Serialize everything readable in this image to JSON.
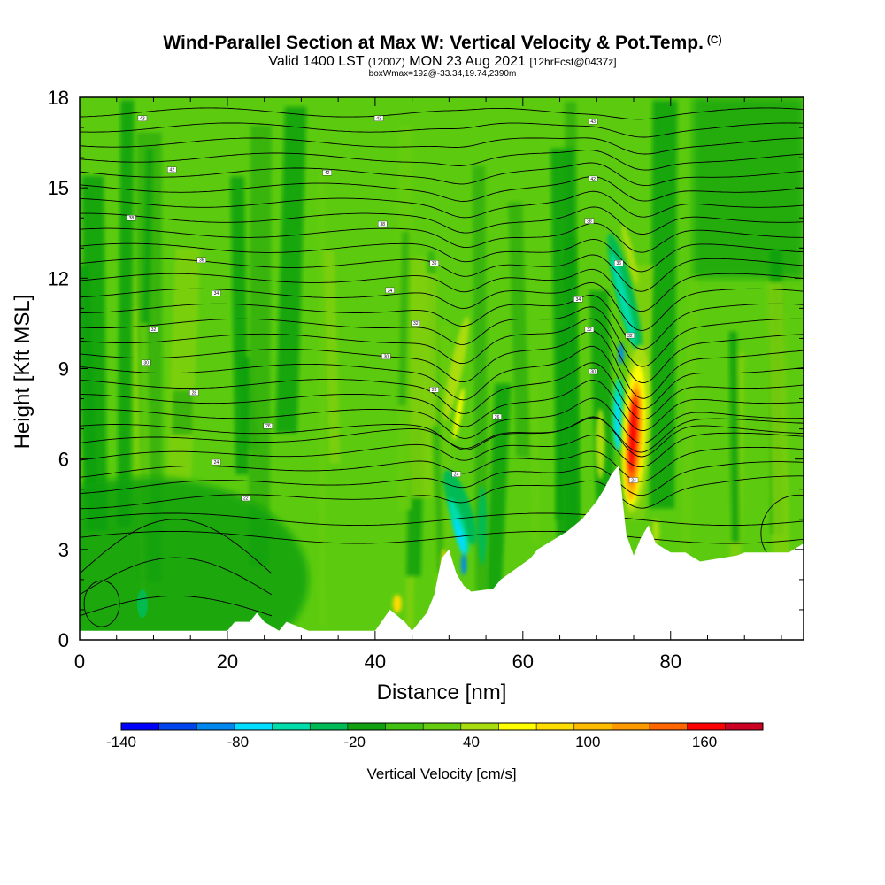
{
  "header": {
    "title": "Wind-Parallel Section at Max W: Vertical Velocity & Pot.Temp.",
    "copyright": "(C)",
    "valid_prefix": "Valid 1400 LST",
    "valid_z": "(1200Z)",
    "valid_date": "MON 23 Aug 2021",
    "forecast_info": "[12hrFcst@0437z]",
    "box_info": "boxWmax=192@-33.34,19.74,2390m"
  },
  "chart_data": {
    "type": "heatmap",
    "xlabel": "Distance [nm]",
    "ylabel": "Height [Kft MSL]",
    "xlim": [
      0,
      98
    ],
    "ylim": [
      0,
      18
    ],
    "x_ticks": [
      "0",
      "20",
      "40",
      "60",
      "80"
    ],
    "x_tick_values": [
      0,
      20,
      40,
      60,
      80
    ],
    "y_ticks": [
      "0",
      "3",
      "6",
      "9",
      "12",
      "15",
      "18"
    ],
    "y_tick_values": [
      0,
      3,
      6,
      9,
      12,
      15,
      18
    ],
    "colorbar": {
      "title": "Vertical Velocity [cm/s]",
      "tick_labels": [
        "-140",
        "-80",
        "-20",
        "40",
        "100",
        "160"
      ],
      "tick_values": [
        -140,
        -80,
        -20,
        40,
        100,
        160
      ],
      "range": [
        -140,
        190
      ],
      "colors": [
        "#0000ff",
        "#0044ee",
        "#0088ee",
        "#00ddff",
        "#00ddaa",
        "#00bb55",
        "#10a010",
        "#40c010",
        "#66cc10",
        "#aadd10",
        "#ffff00",
        "#ffdd00",
        "#ffbb00",
        "#ff9900",
        "#ff6600",
        "#ff0000",
        "#cc0022"
      ]
    },
    "features": [
      {
        "name": "downdraft",
        "x": 51.5,
        "y_range": [
          2.5,
          5.5
        ],
        "min_w": -100
      },
      {
        "name": "downdraft",
        "x": 73,
        "y_range": [
          5.8,
          13.5
        ],
        "min_w": -80
      },
      {
        "name": "updraft",
        "x": 75.2,
        "y_range": [
          3.5,
          9.5
        ],
        "max_w": 192
      },
      {
        "name": "updraft",
        "x": 51,
        "y_range": [
          6.5,
          11
        ],
        "max_w": 40
      }
    ],
    "terrain_kft": [
      [
        0,
        0.3
      ],
      [
        20,
        0.3
      ],
      [
        21,
        0.6
      ],
      [
        23,
        0.6
      ],
      [
        24,
        0.9
      ],
      [
        25,
        0.6
      ],
      [
        27,
        0.3
      ],
      [
        28,
        0.6
      ],
      [
        31,
        0.3
      ],
      [
        40,
        0.3
      ],
      [
        42,
        1.0
      ],
      [
        44,
        0.6
      ],
      [
        45,
        0.3
      ],
      [
        47,
        0.9
      ],
      [
        48,
        1.5
      ],
      [
        49,
        2.7
      ],
      [
        50,
        3.0
      ],
      [
        51,
        2.2
      ],
      [
        52,
        1.8
      ],
      [
        53,
        1.6
      ],
      [
        56,
        1.7
      ],
      [
        57,
        2.0
      ],
      [
        61,
        2.7
      ],
      [
        62,
        3.0
      ],
      [
        64,
        3.3
      ],
      [
        66,
        3.6
      ],
      [
        68,
        4.0
      ],
      [
        70,
        4.6
      ],
      [
        71,
        5.0
      ],
      [
        72,
        5.5
      ],
      [
        73,
        5.8
      ],
      [
        74,
        3.5
      ],
      [
        75,
        2.8
      ],
      [
        76,
        3.4
      ],
      [
        77,
        3.8
      ],
      [
        78,
        3.2
      ],
      [
        80,
        2.9
      ],
      [
        82,
        2.9
      ],
      [
        84,
        2.6
      ],
      [
        89,
        2.8
      ],
      [
        90,
        2.9
      ],
      [
        93,
        2.9
      ],
      [
        96,
        2.9
      ],
      [
        98,
        3.2
      ]
    ],
    "theta_isolines_kft": [
      0.8,
      1.5,
      2.2,
      3.4,
      4.0,
      4.5,
      5.0,
      5.5,
      6.0,
      6.5,
      7.0,
      7.5,
      8.0,
      8.5,
      9.0,
      9.5,
      10.0,
      10.5,
      11.0,
      11.5,
      12.0,
      12.5,
      13.0,
      13.5,
      14.0,
      14.5,
      15.0,
      15.5,
      16.0,
      16.5,
      17.0,
      17.5
    ],
    "theta_labels": [
      {
        "text": "43",
        "x": 8.5,
        "y": 17.3
      },
      {
        "text": "43",
        "x": 40.5,
        "y": 17.3
      },
      {
        "text": "43",
        "x": 69.5,
        "y": 17.2
      },
      {
        "text": "42",
        "x": 12.5,
        "y": 15.6
      },
      {
        "text": "42",
        "x": 33.5,
        "y": 15.5
      },
      {
        "text": "42",
        "x": 69.5,
        "y": 15.3
      },
      {
        "text": "38",
        "x": 7,
        "y": 14.0
      },
      {
        "text": "38",
        "x": 41,
        "y": 13.8
      },
      {
        "text": "38",
        "x": 69,
        "y": 13.9
      },
      {
        "text": "36",
        "x": 16.5,
        "y": 12.6
      },
      {
        "text": "36",
        "x": 48,
        "y": 12.5
      },
      {
        "text": "36",
        "x": 73,
        "y": 12.5
      },
      {
        "text": "34",
        "x": 18.5,
        "y": 11.5
      },
      {
        "text": "34",
        "x": 42,
        "y": 11.6
      },
      {
        "text": "34",
        "x": 67.5,
        "y": 11.3
      },
      {
        "text": "32",
        "x": 10,
        "y": 10.3
      },
      {
        "text": "32",
        "x": 45.5,
        "y": 10.5
      },
      {
        "text": "32",
        "x": 69,
        "y": 10.3
      },
      {
        "text": "32",
        "x": 74.5,
        "y": 10.1
      },
      {
        "text": "30",
        "x": 9,
        "y": 9.2
      },
      {
        "text": "30",
        "x": 41.5,
        "y": 9.4
      },
      {
        "text": "30",
        "x": 69.5,
        "y": 8.9
      },
      {
        "text": "28",
        "x": 15.5,
        "y": 8.2
      },
      {
        "text": "28",
        "x": 48,
        "y": 8.3
      },
      {
        "text": "26",
        "x": 25.5,
        "y": 7.1
      },
      {
        "text": "26",
        "x": 56.5,
        "y": 7.4
      },
      {
        "text": "24",
        "x": 18.5,
        "y": 5.9
      },
      {
        "text": "24",
        "x": 51,
        "y": 5.5
      },
      {
        "text": "24",
        "x": 75,
        "y": 5.3
      },
      {
        "text": "22",
        "x": 22.5,
        "y": 4.7
      }
    ]
  }
}
